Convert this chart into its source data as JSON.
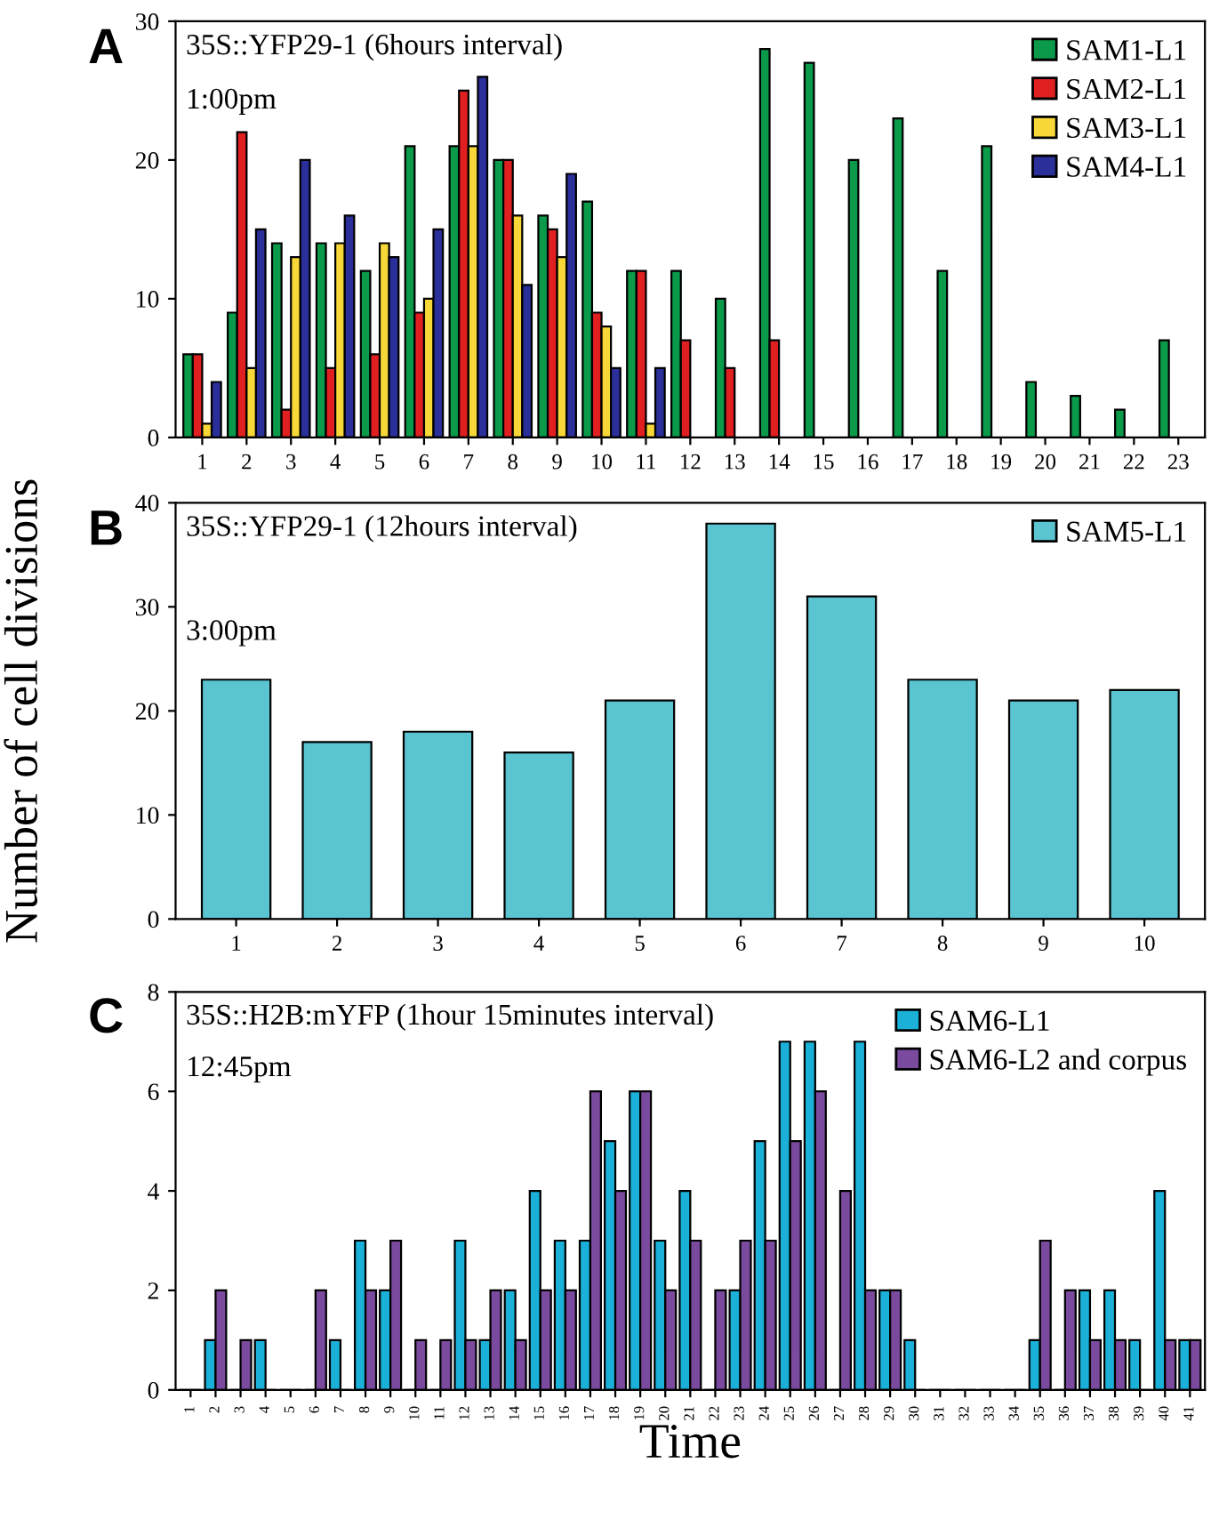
{
  "chart_data": [
    {
      "type": "bar",
      "title": "35S::YFP29-1 (6hours interval)",
      "annotations": [
        "A",
        "1:00pm"
      ],
      "categories": [
        "1",
        "2",
        "3",
        "4",
        "5",
        "6",
        "7",
        "8",
        "9",
        "10",
        "11",
        "12",
        "13",
        "14",
        "15",
        "16",
        "17",
        "18",
        "19",
        "20",
        "21",
        "22",
        "23"
      ],
      "series": [
        {
          "name": "SAM1-L1",
          "color": "#0a9a4a",
          "values": [
            6,
            9,
            14,
            14,
            12,
            21,
            21,
            20,
            16,
            17,
            12,
            12,
            10,
            28,
            27,
            20,
            23,
            12,
            21,
            4,
            3,
            2,
            7
          ]
        },
        {
          "name": "SAM2-L1",
          "color": "#e02020",
          "values": [
            6,
            22,
            2,
            5,
            6,
            9,
            25,
            20,
            15,
            9,
            12,
            7,
            5,
            7,
            null,
            null,
            null,
            null,
            null,
            null,
            null,
            null,
            null
          ]
        },
        {
          "name": "SAM3-L1",
          "color": "#f8d838",
          "values": [
            1,
            5,
            13,
            14,
            14,
            10,
            21,
            16,
            13,
            8,
            1,
            null,
            null,
            null,
            null,
            null,
            null,
            null,
            null,
            null,
            null,
            null,
            null
          ]
        },
        {
          "name": "SAM4-L1",
          "color": "#2a2f9a",
          "values": [
            4,
            15,
            20,
            16,
            13,
            15,
            26,
            11,
            19,
            5,
            5,
            null,
            null,
            null,
            null,
            null,
            null,
            null,
            null,
            null,
            null,
            null,
            null
          ]
        }
      ],
      "ylim": [
        0,
        30
      ],
      "yticks": [
        0,
        10,
        20,
        30
      ],
      "grid": false,
      "legend": "top right"
    },
    {
      "type": "bar",
      "title": "35S::YFP29-1 (12hours interval)",
      "annotations": [
        "B",
        "3:00pm"
      ],
      "ylabel": "Number of cell divisions",
      "categories": [
        "1",
        "2",
        "3",
        "4",
        "5",
        "6",
        "7",
        "8",
        "9",
        "10"
      ],
      "series": [
        {
          "name": "SAM5-L1",
          "color": "#5ac4d0",
          "values": [
            23,
            17,
            18,
            16,
            21,
            38,
            31,
            23,
            21,
            22
          ]
        }
      ],
      "ylim": [
        0,
        40
      ],
      "yticks": [
        0,
        10,
        20,
        30,
        40
      ],
      "grid": false,
      "legend": "top right"
    },
    {
      "type": "bar",
      "title": "35S::H2B:mYFP (1hour 15minutes interval)",
      "annotations": [
        "C",
        "12:45pm"
      ],
      "xlabel": "Time",
      "categories": [
        "1",
        "2",
        "3",
        "4",
        "5",
        "6",
        "7",
        "8",
        "9",
        "10",
        "11",
        "12",
        "13",
        "14",
        "15",
        "16",
        "17",
        "18",
        "19",
        "20",
        "21",
        "22",
        "23",
        "24",
        "25",
        "26",
        "27",
        "28",
        "29",
        "30",
        "31",
        "32",
        "33",
        "34",
        "35",
        "36",
        "37",
        "38",
        "39",
        "40",
        "41"
      ],
      "series": [
        {
          "name": "SAM6-L1",
          "color": "#1ab0d8",
          "values": [
            0,
            1,
            0,
            1,
            0,
            0,
            1,
            3,
            2,
            0,
            0,
            3,
            1,
            2,
            4,
            3,
            3,
            5,
            6,
            3,
            4,
            0,
            2,
            5,
            7,
            7,
            0,
            7,
            2,
            1,
            0,
            0,
            0,
            0,
            1,
            0,
            2,
            2,
            1,
            4,
            1
          ]
        },
        {
          "name": "SAM6-L2 and corpus",
          "color": "#7a4a9e",
          "values": [
            0,
            2,
            1,
            0,
            0,
            2,
            0,
            2,
            3,
            1,
            1,
            1,
            2,
            1,
            2,
            2,
            6,
            4,
            6,
            2,
            3,
            2,
            3,
            3,
            5,
            6,
            4,
            2,
            2,
            0,
            0,
            0,
            0,
            0,
            3,
            2,
            1,
            1,
            0,
            1,
            1
          ]
        }
      ],
      "ylim": [
        0,
        8
      ],
      "yticks": [
        0,
        2,
        4,
        6,
        8
      ],
      "grid": false,
      "legend": "top right"
    }
  ]
}
